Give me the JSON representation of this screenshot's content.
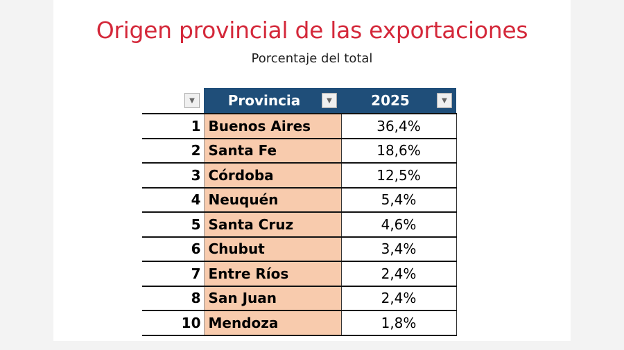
{
  "chart_data": {
    "type": "table",
    "title": "Origen provincial de las exportaciones",
    "subtitle": "Porcentaje del total",
    "columns": [
      "",
      "Provincia",
      "2025"
    ],
    "rows": [
      {
        "rank": "1",
        "provincia": "Buenos Aires",
        "value": "36,4%"
      },
      {
        "rank": "2",
        "provincia": "Santa Fe",
        "value": "18,6%"
      },
      {
        "rank": "3",
        "provincia": "Córdoba",
        "value": "12,5%"
      },
      {
        "rank": "4",
        "provincia": "Neuquén",
        "value": "5,4%"
      },
      {
        "rank": "5",
        "provincia": "Santa Cruz",
        "value": "4,6%"
      },
      {
        "rank": "6",
        "provincia": "Chubut",
        "value": "3,4%"
      },
      {
        "rank": "7",
        "provincia": "Entre Ríos",
        "value": "2,4%"
      },
      {
        "rank": "8",
        "provincia": "San Juan",
        "value": "2,4%"
      },
      {
        "rank": "10",
        "provincia": "Mendoza",
        "value": "1,8%"
      }
    ]
  },
  "colors": {
    "title": "#d4283a",
    "header": "#1f4e79",
    "province_fill": "#f8cbad"
  }
}
